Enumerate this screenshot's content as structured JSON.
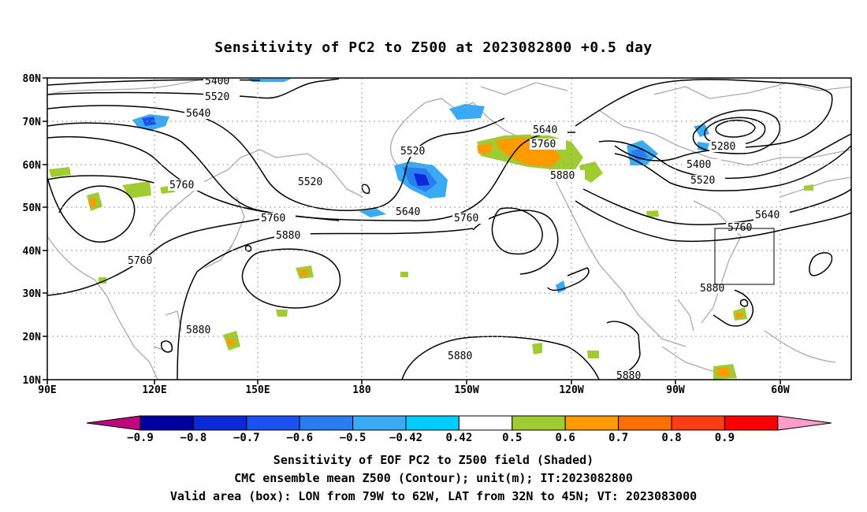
{
  "map": {
    "title": "Sensitivity of PC2 to Z500 at 2023082800 +0.5 day",
    "lat_labels": [
      "80N",
      "70N",
      "60N",
      "50N",
      "40N",
      "30N",
      "20N",
      "10N"
    ],
    "lon_labels": [
      "90E",
      "120E",
      "150E",
      "180",
      "150W",
      "120W",
      "90W",
      "60W"
    ],
    "contour_labels": [
      "5400",
      "5520",
      "5640",
      "5760",
      "5280",
      "5880"
    ],
    "colorbar": {
      "tick_labels": [
        "-0.9",
        "-0.8",
        "-0.7",
        "-0.6",
        "-0.5",
        "-0.42",
        "0.42",
        "0.5",
        "0.6",
        "0.7",
        "0.8",
        "0.9"
      ],
      "colors": [
        "#c0067f",
        "#0000a0",
        "#0a28d8",
        "#1c50f0",
        "#2a7df0",
        "#3aaaf5",
        "#00ccff",
        "#ffffff",
        "#a0cc32",
        "#ff9a00",
        "#ff6e00",
        "#ff3c14",
        "#ff0000",
        "#ff9ec8"
      ]
    },
    "valid_box": {
      "lon_west": -79,
      "lon_east": -62,
      "lat_south": 32,
      "lat_north": 45
    },
    "footer": {
      "line1": "Sensitivity of EOF PC2 to Z500 field (Shaded)",
      "line2": "CMC ensemble mean Z500 (Contour); unit(m); IT:2023082800",
      "line3": "Valid area (box): LON from 79W to 62W, LAT from 32N to 45N; VT: 2023083000"
    }
  }
}
